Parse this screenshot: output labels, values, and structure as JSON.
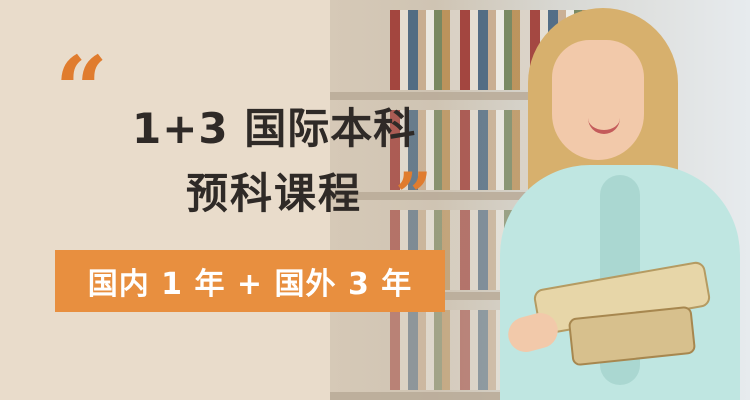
{
  "banner": {
    "title_line1": "1+3 国际本科",
    "title_line2": "预科课程",
    "subtitle": "国内 1 年 + 国外 3 年",
    "open_quote": "“",
    "close_quote": "”"
  },
  "colors": {
    "background": "#e9dccb",
    "accent": "#e88f3f",
    "quote": "#e07c2e",
    "title": "#2f2a27"
  },
  "icons": {
    "open_quote": "quote-open-icon",
    "close_quote": "quote-close-icon"
  }
}
